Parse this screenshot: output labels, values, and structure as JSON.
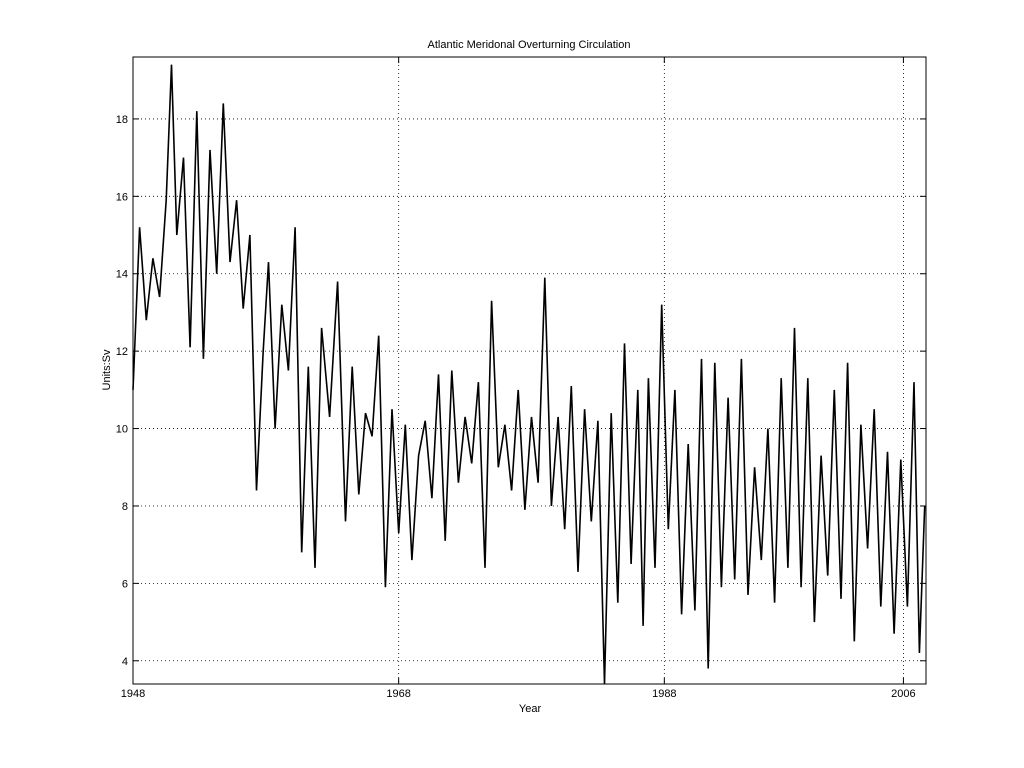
{
  "chart_data": {
    "type": "line",
    "title": "Atlantic Meridonal Overturning Circulation",
    "xlabel": "Year",
    "ylabel": "Units:Sv",
    "xlim": [
      1948,
      2007.7
    ],
    "ylim": [
      3.4,
      19.6
    ],
    "grid": true,
    "x_ticks": [
      1948,
      1968,
      1988,
      2006
    ],
    "y_ticks": [
      4,
      6,
      8,
      10,
      12,
      14,
      16,
      18
    ],
    "series": [
      {
        "color": "#000000",
        "x": [
          1948.0,
          1948.5,
          1949.0,
          1949.5,
          1950.0,
          1950.5,
          1950.9,
          1951.3,
          1951.8,
          1952.3,
          1952.8,
          1953.3,
          1953.8,
          1954.3,
          1954.8,
          1955.3,
          1955.8,
          1956.3,
          1956.8,
          1957.3,
          1957.8,
          1958.2,
          1958.7,
          1959.2,
          1959.7,
          1960.2,
          1960.7,
          1961.2,
          1961.7,
          1962.2,
          1962.8,
          1963.4,
          1964.0,
          1964.5,
          1965.0,
          1965.5,
          1966.0,
          1966.5,
          1967.0,
          1967.5,
          1968.0,
          1968.5,
          1969.0,
          1969.5,
          1970.0,
          1970.5,
          1971.0,
          1971.5,
          1972.0,
          1972.5,
          1973.0,
          1973.5,
          1974.0,
          1974.5,
          1975.0,
          1975.5,
          1976.0,
          1976.5,
          1977.0,
          1977.5,
          1978.0,
          1978.5,
          1979.0,
          1979.5,
          1980.0,
          1980.5,
          1981.0,
          1981.5,
          1982.0,
          1982.5,
          1983.0,
          1983.5,
          1984.0,
          1984.5,
          1985.0,
          1985.5,
          1986.0,
          1986.4,
          1986.8,
          1987.3,
          1987.8,
          1988.3,
          1988.8,
          1989.3,
          1989.8,
          1990.3,
          1990.8,
          1991.3,
          1991.8,
          1992.3,
          1992.8,
          1993.3,
          1993.8,
          1994.3,
          1994.8,
          1995.3,
          1995.8,
          1996.3,
          1996.8,
          1997.3,
          1997.8,
          1998.3,
          1998.8,
          1999.3,
          1999.8,
          2000.3,
          2000.8,
          2001.3,
          2001.8,
          2002.3,
          2002.8,
          2003.3,
          2003.8,
          2004.3,
          2004.8,
          2005.3,
          2005.8,
          2006.3,
          2006.8,
          2007.2,
          2007.6
        ],
        "y": [
          11.0,
          15.2,
          12.8,
          14.4,
          13.4,
          15.9,
          19.4,
          15.0,
          17.0,
          12.1,
          18.2,
          11.8,
          17.2,
          14.0,
          18.4,
          14.3,
          15.9,
          13.1,
          15.0,
          8.4,
          12.0,
          14.3,
          10.0,
          13.2,
          11.5,
          15.2,
          6.8,
          11.6,
          6.4,
          12.6,
          10.3,
          13.8,
          7.6,
          11.6,
          8.3,
          10.4,
          9.8,
          12.4,
          5.9,
          10.5,
          7.3,
          10.1,
          6.6,
          9.3,
          10.2,
          8.2,
          11.4,
          7.1,
          11.5,
          8.6,
          10.3,
          9.1,
          11.2,
          6.4,
          13.3,
          9.0,
          10.1,
          8.4,
          11.0,
          7.9,
          10.3,
          8.6,
          13.9,
          8.0,
          10.3,
          7.4,
          11.1,
          6.3,
          10.5,
          7.6,
          10.2,
          3.4,
          10.4,
          5.5,
          12.2,
          6.5,
          11.0,
          4.9,
          11.3,
          6.4,
          13.2,
          7.4,
          11.0,
          5.2,
          9.6,
          5.3,
          11.8,
          3.8,
          11.7,
          5.9,
          10.8,
          6.1,
          11.8,
          5.7,
          9.0,
          6.6,
          10.0,
          5.5,
          11.3,
          6.4,
          12.6,
          5.9,
          11.3,
          5.0,
          9.3,
          6.2,
          11.0,
          5.6,
          11.7,
          4.5,
          10.1,
          6.9,
          10.5,
          5.4,
          9.4,
          4.7,
          9.2,
          5.4,
          11.2,
          4.2,
          8.0
        ]
      }
    ]
  }
}
